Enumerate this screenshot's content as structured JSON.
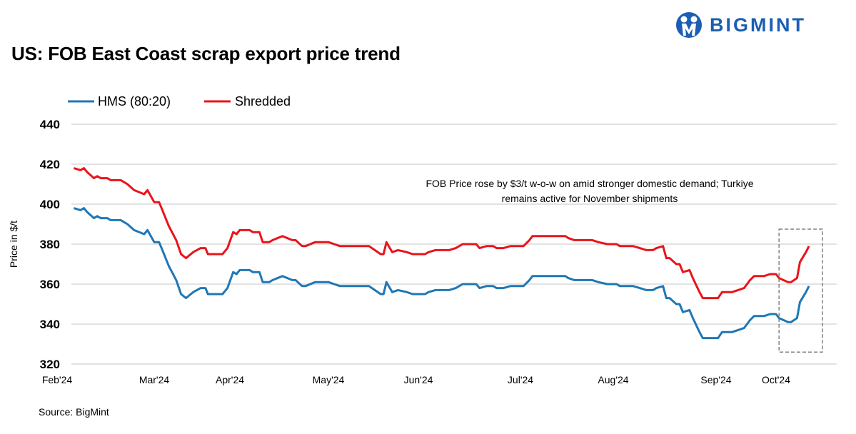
{
  "header": {
    "title": "US: FOB East Coast scrap export price trend",
    "logo_text": "BIGMINT"
  },
  "footer": {
    "source": "Source: BigMint"
  },
  "chart_data": {
    "type": "line",
    "title": "US: FOB East Coast scrap export price trend",
    "xlabel": "",
    "ylabel": "Price in $/t",
    "ylim": [
      320,
      440
    ],
    "yticks": [
      320,
      340,
      360,
      380,
      400,
      420,
      440
    ],
    "xtick_labels": [
      "Feb'24",
      "Mar'24",
      "Apr'24",
      "May'24",
      "Jun'24",
      "Jul'24",
      "Aug'24",
      "Sep'24",
      "Oct'24"
    ],
    "xtick_dates": [
      "2024-02-01",
      "2024-03-01",
      "2024-04-01",
      "2024-05-01",
      "2024-06-01",
      "2024-07-01",
      "2024-08-01",
      "2024-09-01",
      "2024-10-01"
    ],
    "grid": "horizontal",
    "legend_position": "top-left",
    "annotation": {
      "line1": "FOB Price rose by $3/t w-o-w on amid stronger domestic demand; Turkiye",
      "line2": "remains active for November shipments"
    },
    "x": [
      "2024-02-06",
      "2024-02-08",
      "2024-02-09",
      "2024-02-10",
      "2024-02-12",
      "2024-02-13",
      "2024-02-14",
      "2024-02-16",
      "2024-02-17",
      "2024-02-20",
      "2024-02-22",
      "2024-02-24",
      "2024-02-27",
      "2024-02-28",
      "2024-03-01",
      "2024-03-03",
      "2024-03-04",
      "2024-03-07",
      "2024-03-10",
      "2024-03-12",
      "2024-03-14",
      "2024-03-17",
      "2024-03-20",
      "2024-03-22",
      "2024-03-23",
      "2024-03-29",
      "2024-03-31",
      "2024-04-02",
      "2024-04-03",
      "2024-04-04",
      "2024-04-07",
      "2024-04-08",
      "2024-04-10",
      "2024-04-11",
      "2024-04-13",
      "2024-04-14",
      "2024-04-17",
      "2024-04-20",
      "2024-04-21",
      "2024-04-23",
      "2024-04-24",
      "2024-04-27",
      "2024-05-01",
      "2024-05-03",
      "2024-05-05",
      "2024-05-15",
      "2024-05-17",
      "2024-05-19",
      "2024-05-20",
      "2024-05-21",
      "2024-05-23",
      "2024-05-25",
      "2024-05-28",
      "2024-05-30",
      "2024-06-03",
      "2024-06-04",
      "2024-06-06",
      "2024-06-10",
      "2024-06-12",
      "2024-06-14",
      "2024-06-18",
      "2024-06-19",
      "2024-06-21",
      "2024-06-23",
      "2024-06-24",
      "2024-06-26",
      "2024-06-28",
      "2024-07-02",
      "2024-07-04",
      "2024-07-05",
      "2024-07-16",
      "2024-07-17",
      "2024-07-19",
      "2024-07-25",
      "2024-07-27",
      "2024-07-30",
      "2024-08-02",
      "2024-08-03",
      "2024-08-07",
      "2024-08-09",
      "2024-08-11",
      "2024-08-13",
      "2024-08-14",
      "2024-08-16",
      "2024-08-17",
      "2024-08-18",
      "2024-08-20",
      "2024-08-21",
      "2024-08-22",
      "2024-08-24",
      "2024-08-25",
      "2024-08-27",
      "2024-08-28",
      "2024-09-02",
      "2024-09-04",
      "2024-09-09",
      "2024-09-12",
      "2024-09-15",
      "2024-09-18",
      "2024-09-20",
      "2024-09-25",
      "2024-09-28",
      "2024-10-01",
      "2024-10-02",
      "2024-10-05",
      "2024-10-06",
      "2024-10-08",
      "2024-10-09",
      "2024-10-11",
      "2024-10-12"
    ],
    "series": [
      {
        "name": "HMS (80:20)",
        "color": "#1f77b4",
        "values": [
          398,
          397,
          398,
          396,
          393,
          394,
          393,
          393,
          392,
          392,
          390,
          387,
          385,
          387,
          381,
          381,
          378,
          369,
          362,
          355,
          353,
          356,
          358,
          358,
          355,
          355,
          358,
          366,
          365,
          367,
          367,
          366,
          366,
          361,
          361,
          362,
          364,
          362,
          362,
          359,
          359,
          361,
          361,
          360,
          359,
          359,
          357,
          355,
          355,
          361,
          356,
          357,
          356,
          355,
          355,
          356,
          357,
          357,
          358,
          360,
          360,
          358,
          359,
          359,
          358,
          358,
          359,
          359,
          362,
          364,
          364,
          363,
          362,
          362,
          361,
          360,
          360,
          359,
          359,
          358,
          357,
          357,
          358,
          359,
          353,
          353,
          350,
          350,
          346,
          347,
          343,
          336,
          333,
          333,
          336,
          336,
          337,
          338,
          342,
          344,
          344,
          345,
          345,
          343,
          341,
          341,
          343,
          351,
          356,
          359
        ]
      },
      {
        "name": "Shredded",
        "color": "#e8141b",
        "values": [
          418,
          417,
          418,
          416,
          413,
          414,
          413,
          413,
          412,
          412,
          410,
          407,
          405,
          407,
          401,
          401,
          398,
          389,
          382,
          375,
          373,
          376,
          378,
          378,
          375,
          375,
          378,
          386,
          385,
          387,
          387,
          386,
          386,
          381,
          381,
          382,
          384,
          382,
          382,
          379,
          379,
          381,
          381,
          380,
          379,
          379,
          377,
          375,
          375,
          381,
          376,
          377,
          376,
          375,
          375,
          376,
          377,
          377,
          378,
          380,
          380,
          378,
          379,
          379,
          378,
          378,
          379,
          379,
          382,
          384,
          384,
          383,
          382,
          382,
          381,
          380,
          380,
          379,
          379,
          378,
          377,
          377,
          378,
          379,
          373,
          373,
          370,
          370,
          366,
          367,
          363,
          356,
          353,
          353,
          356,
          356,
          357,
          358,
          362,
          364,
          364,
          365,
          365,
          363,
          361,
          361,
          363,
          371,
          376,
          379
        ]
      }
    ]
  }
}
